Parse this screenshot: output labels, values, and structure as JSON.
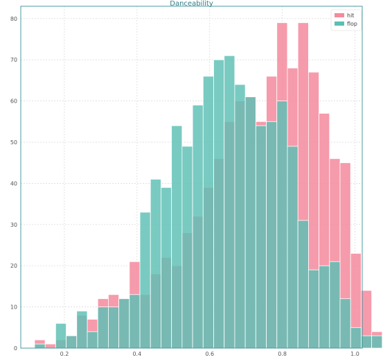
{
  "chart_data": {
    "type": "histogram",
    "title": "Danceability",
    "xlabel": "",
    "ylabel": "",
    "xlim": [
      0.08,
      1.02
    ],
    "ylim": [
      0,
      83
    ],
    "x_ticks": [
      0.2,
      0.4,
      0.6,
      0.8,
      1.0
    ],
    "y_ticks": [
      0,
      10,
      20,
      30,
      40,
      50,
      60,
      70,
      80
    ],
    "grid": true,
    "legend_position": "top-right",
    "bin_start": 0.118,
    "bin_width": 0.029,
    "series": [
      {
        "name": "hit",
        "color": "#f48a9c",
        "values": [
          2,
          1,
          2,
          3,
          8,
          7,
          12,
          13,
          12,
          21,
          13,
          18,
          22,
          20,
          28,
          32,
          39,
          46,
          55,
          60,
          61,
          55,
          66,
          79,
          68,
          79,
          67,
          57,
          46,
          45,
          23,
          14,
          4
        ]
      },
      {
        "name": "flop",
        "color": "#5bbfb4",
        "values": [
          1,
          0,
          6,
          3,
          9,
          4,
          10,
          10,
          12,
          13,
          33,
          41,
          39,
          54,
          49,
          59,
          66,
          70,
          71,
          64,
          61,
          54,
          55,
          60,
          49,
          31,
          19,
          20,
          21,
          12,
          5,
          3,
          3
        ]
      }
    ]
  }
}
